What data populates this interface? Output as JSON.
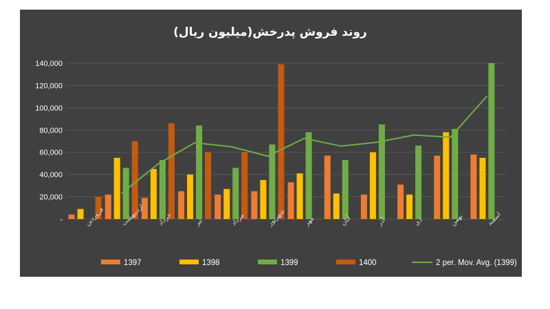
{
  "chart_data": {
    "type": "bar",
    "title": "روند فروش پدرخش(میلیون ریال)",
    "xlabel": "",
    "ylabel": "",
    "ylim": [
      0,
      140000
    ],
    "ytick_values": [
      0,
      20000,
      40000,
      60000,
      80000,
      100000,
      120000,
      140000
    ],
    "ytick_labels": [
      "-",
      "20,000",
      "40,000",
      "60,000",
      "80,000",
      "100,000",
      "120,000",
      "140,000"
    ],
    "grid": true,
    "legend_position": "bottom",
    "categories": [
      "فروردین",
      "اردیبهشت",
      "خرداد",
      "تیر",
      "مرداد",
      "شهریور",
      "مهر",
      "آبان",
      "آذر",
      "دی",
      "بهمن",
      "اسفند"
    ],
    "series": [
      {
        "name": "1397",
        "color": "#ed7d31",
        "values": [
          4000,
          22000,
          19000,
          25000,
          22000,
          25000,
          33000,
          57000,
          22000,
          31000,
          57000,
          58000
        ]
      },
      {
        "name": "1398",
        "color": "#ffc000",
        "values": [
          9000,
          55000,
          45000,
          40000,
          27000,
          35000,
          41000,
          23000,
          60000,
          22000,
          78000,
          55000
        ]
      },
      {
        "name": "1399",
        "color": "#70ad47",
        "values": [
          null,
          46000,
          53000,
          84000,
          46000,
          67000,
          78000,
          53000,
          85000,
          66000,
          81000,
          140000
        ]
      },
      {
        "name": "1400",
        "color": "#c55a11",
        "values": [
          20000,
          70000,
          86000,
          60000,
          60000,
          139000,
          null,
          null,
          null,
          null,
          null,
          null
        ]
      }
    ],
    "trendline": {
      "name": "2 per. Mov. Avg. (1399)",
      "color": "#70ad47",
      "values": [
        null,
        23000,
        49500,
        68500,
        65000,
        56500,
        72500,
        65500,
        69000,
        75500,
        73500,
        110500
      ]
    }
  }
}
